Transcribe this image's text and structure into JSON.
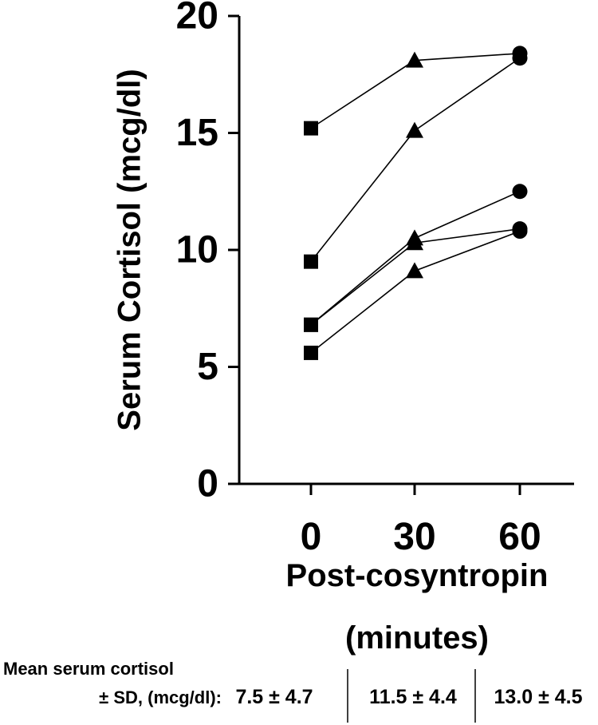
{
  "chart_data": {
    "type": "line",
    "ylabel": "Serum Cortisol (mcg/dl)",
    "xlabel_lines": [
      "Post-cosyntropin",
      "(minutes)"
    ],
    "x_categories": [
      "0",
      "30",
      "60"
    ],
    "y_ticks": [
      0,
      5,
      10,
      15,
      20
    ],
    "ylim": [
      0,
      20
    ],
    "grid": false,
    "legend": "none",
    "markers_by_x": [
      "square",
      "triangle",
      "circle"
    ],
    "series": [
      {
        "values": [
          15.2,
          18.1,
          18.4
        ]
      },
      {
        "values": [
          9.5,
          15.1,
          18.2
        ]
      },
      {
        "values": [
          6.8,
          10.5,
          12.5
        ]
      },
      {
        "values": [
          6.8,
          10.3,
          10.9
        ]
      },
      {
        "values": [
          5.6,
          9.1,
          10.8
        ]
      }
    ]
  },
  "summary": {
    "label_line1": "Mean serum cortisol",
    "label_line2": "± SD, (mcg/dl):",
    "values": [
      "7.5 ± 4.7",
      "11.5 ± 4.4",
      "13.0 ± 4.5"
    ]
  },
  "colors": {
    "ink": "#000000",
    "background": "#ffffff"
  }
}
